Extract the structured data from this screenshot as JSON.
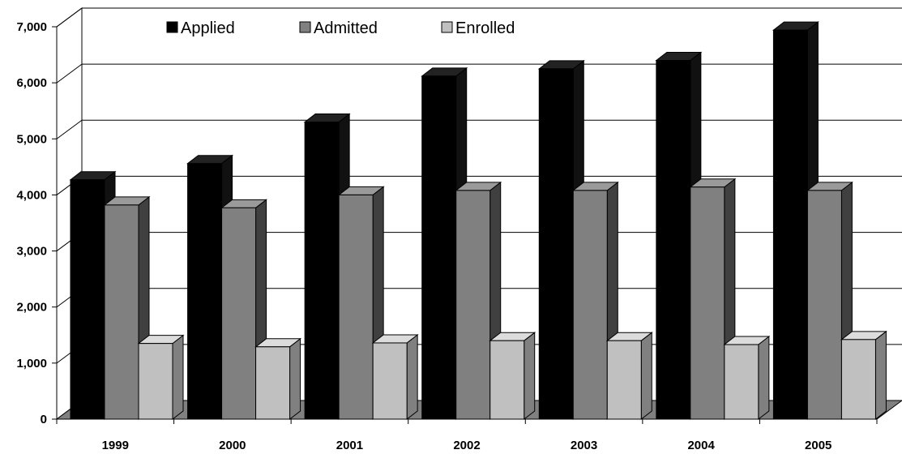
{
  "chart_data": {
    "type": "bar",
    "categories": [
      "1999",
      "2000",
      "2001",
      "2002",
      "2003",
      "2004",
      "2005"
    ],
    "series": [
      {
        "name": "Applied",
        "values": [
          4270,
          4560,
          5300,
          6120,
          6250,
          6400,
          6940
        ],
        "color": "#000000",
        "side": "#111111",
        "top": "#222222"
      },
      {
        "name": "Admitted",
        "values": [
          3820,
          3770,
          4000,
          4080,
          4080,
          4140,
          4080
        ],
        "color": "#808080",
        "side": "#404040",
        "top": "#9a9a9a"
      },
      {
        "name": "Enrolled",
        "values": [
          1350,
          1290,
          1360,
          1400,
          1400,
          1330,
          1420
        ],
        "color": "#c0c0c0",
        "side": "#808080",
        "top": "#dcdcdc"
      }
    ],
    "ylim": [
      0,
      7000
    ],
    "yticks": [
      "0",
      "1,000",
      "2,000",
      "3,000",
      "4,000",
      "5,000",
      "6,000",
      "7,000"
    ],
    "grid": true,
    "legend_position": "top"
  }
}
